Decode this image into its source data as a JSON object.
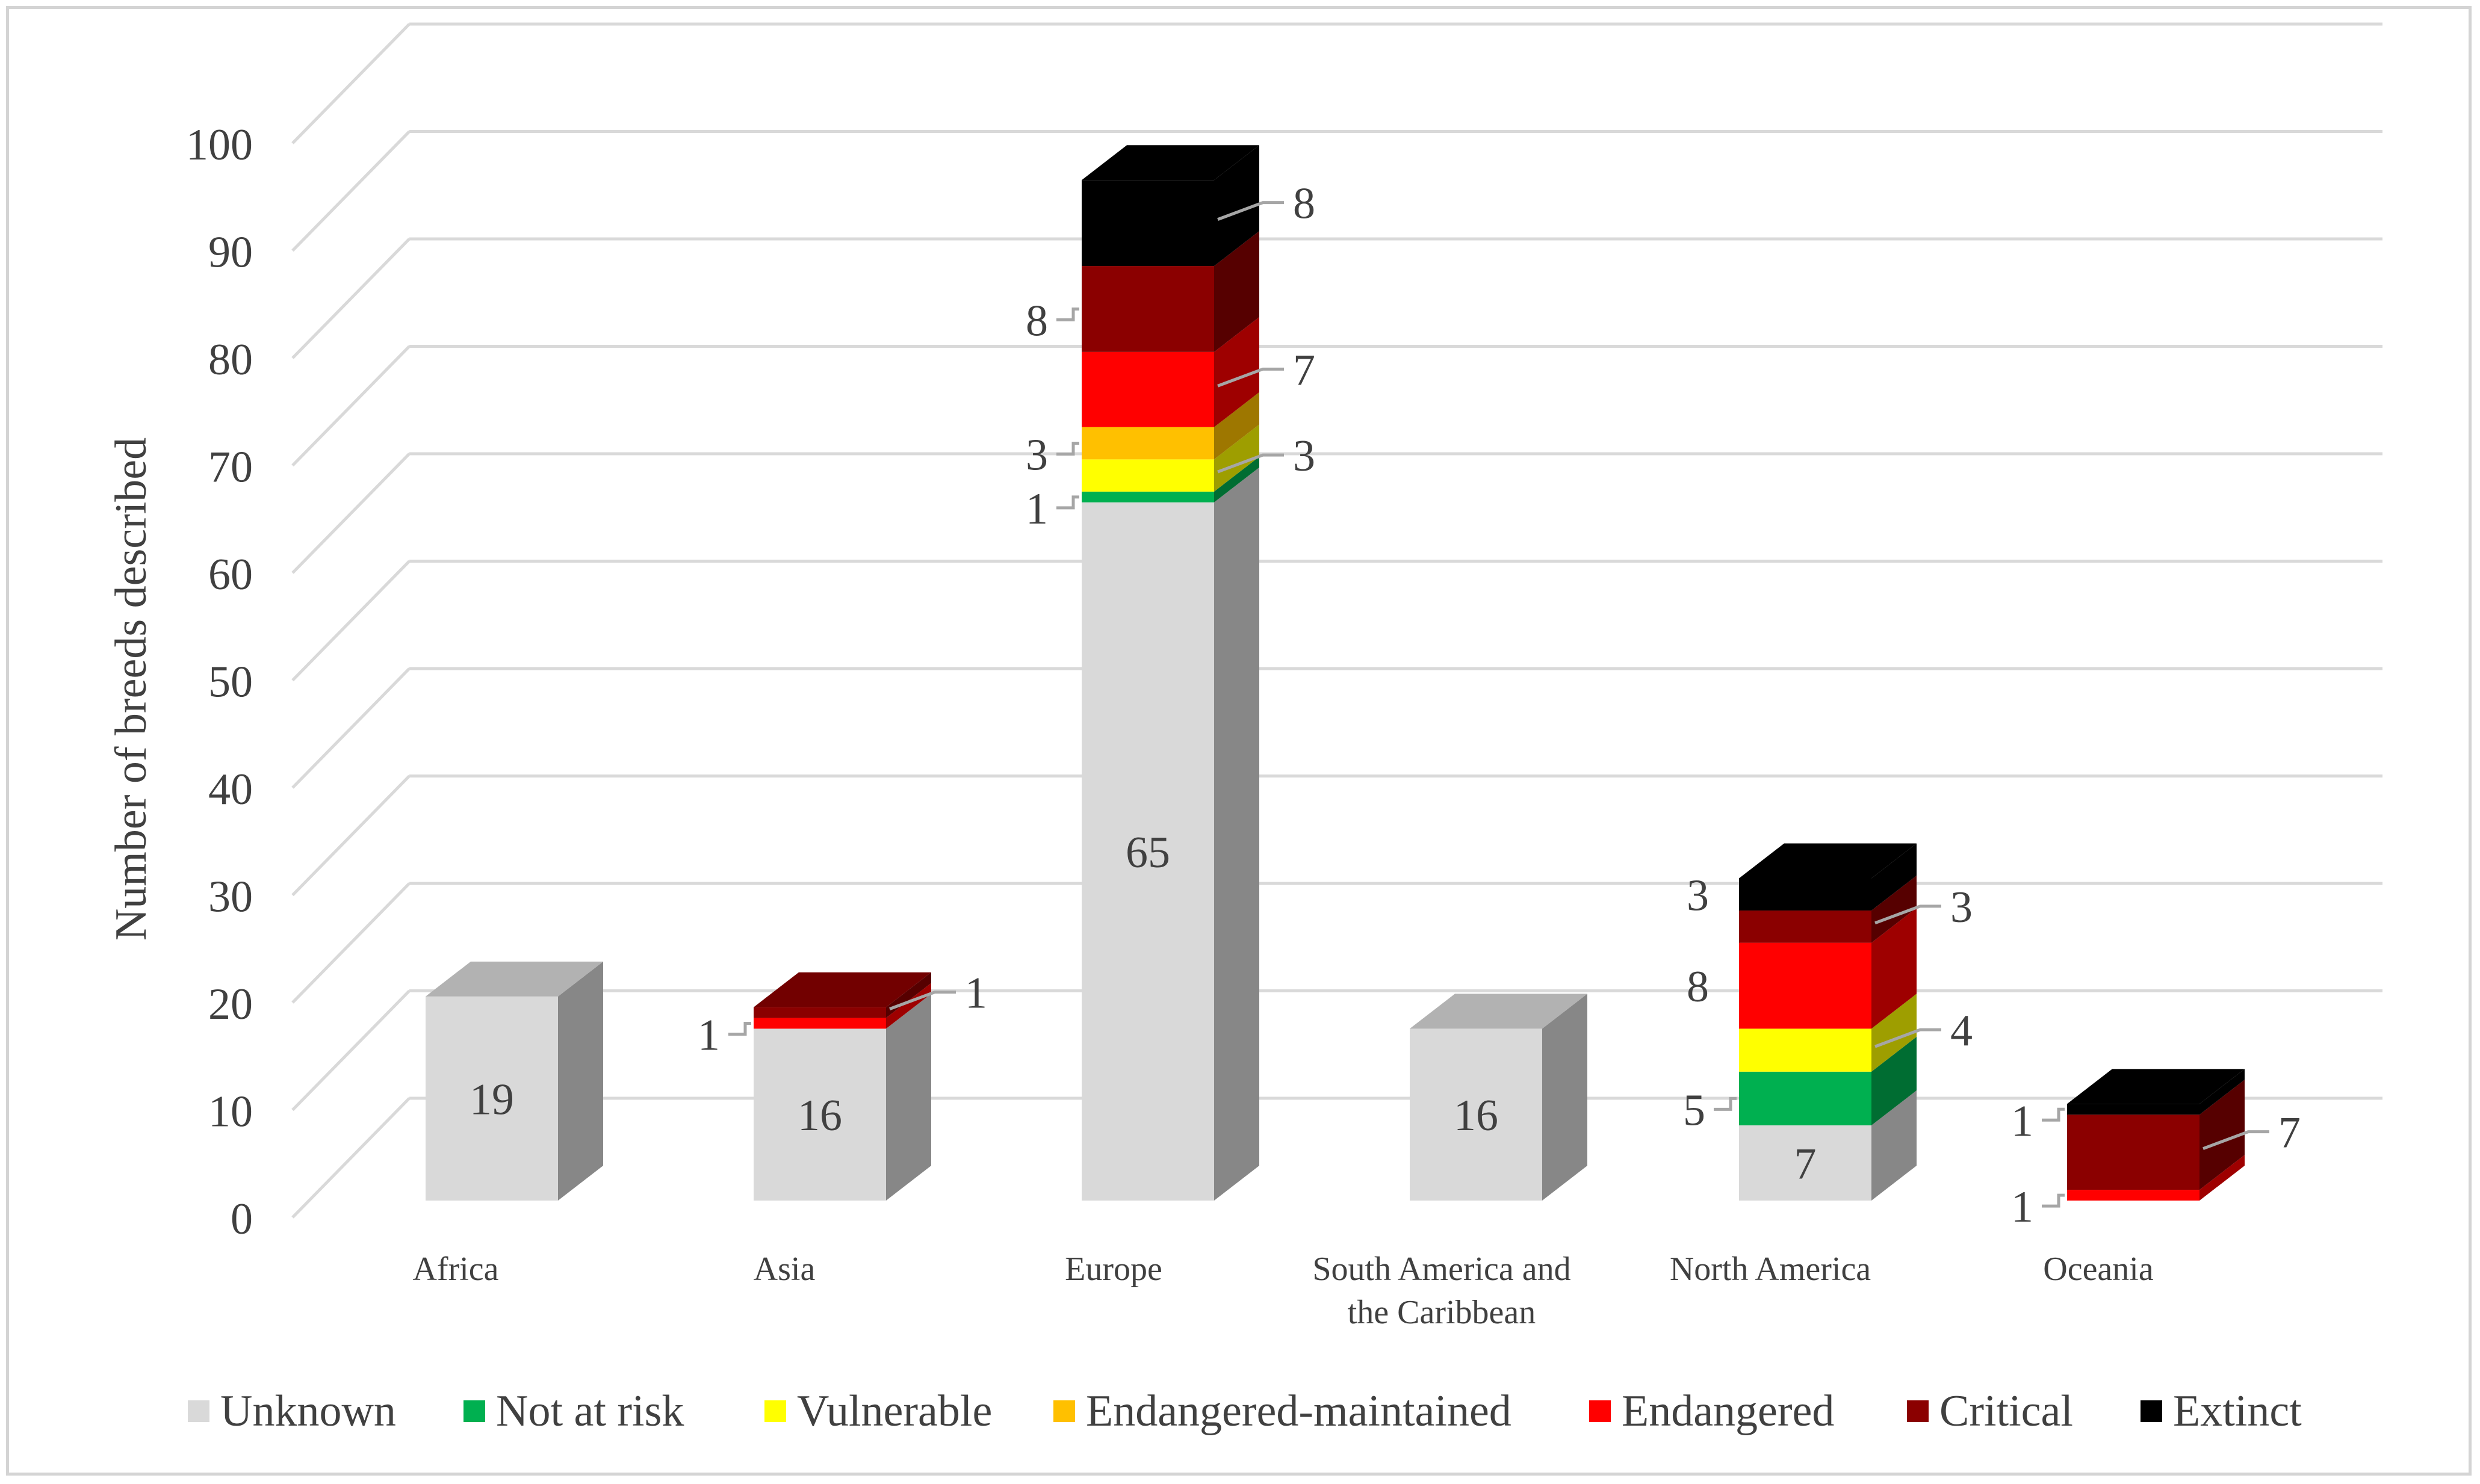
{
  "chart_data": {
    "type": "bar",
    "subtype": "stacked-3d-column",
    "ylabel": "Number of breeds described",
    "xlabel": "",
    "ylim": [
      0,
      100
    ],
    "yticks": [
      "0",
      "10",
      "20",
      "30",
      "40",
      "50",
      "60",
      "70",
      "80",
      "90",
      "100"
    ],
    "categories": [
      "Africa",
      "Asia",
      "Europe",
      "South America and the Caribbean",
      "North America",
      "Oceania"
    ],
    "category_lines": [
      [
        "Africa"
      ],
      [
        "Asia"
      ],
      [
        "Europe"
      ],
      [
        "South America and",
        "the Caribbean"
      ],
      [
        "North America"
      ],
      [
        "Oceania"
      ]
    ],
    "series": [
      {
        "name": "Unknown",
        "color": "#d9d9d9",
        "values": [
          19,
          16,
          65,
          16,
          7,
          0
        ]
      },
      {
        "name": "Not at risk",
        "color": "#00b050",
        "values": [
          0,
          0,
          1,
          0,
          5,
          0
        ]
      },
      {
        "name": "Vulnerable",
        "color": "#ffff00",
        "values": [
          0,
          0,
          3,
          0,
          4,
          0
        ]
      },
      {
        "name": "Endangered-maintained",
        "color": "#ffc000",
        "values": [
          0,
          0,
          3,
          0,
          0,
          0
        ]
      },
      {
        "name": "Endangered",
        "color": "#ff0000",
        "values": [
          0,
          1,
          7,
          0,
          8,
          1
        ]
      },
      {
        "name": "Critical",
        "color": "#8b0000",
        "values": [
          0,
          1,
          8,
          0,
          3,
          7
        ]
      },
      {
        "name": "Extinct",
        "color": "#000000",
        "values": [
          0,
          0,
          8,
          0,
          3,
          1
        ]
      }
    ]
  }
}
